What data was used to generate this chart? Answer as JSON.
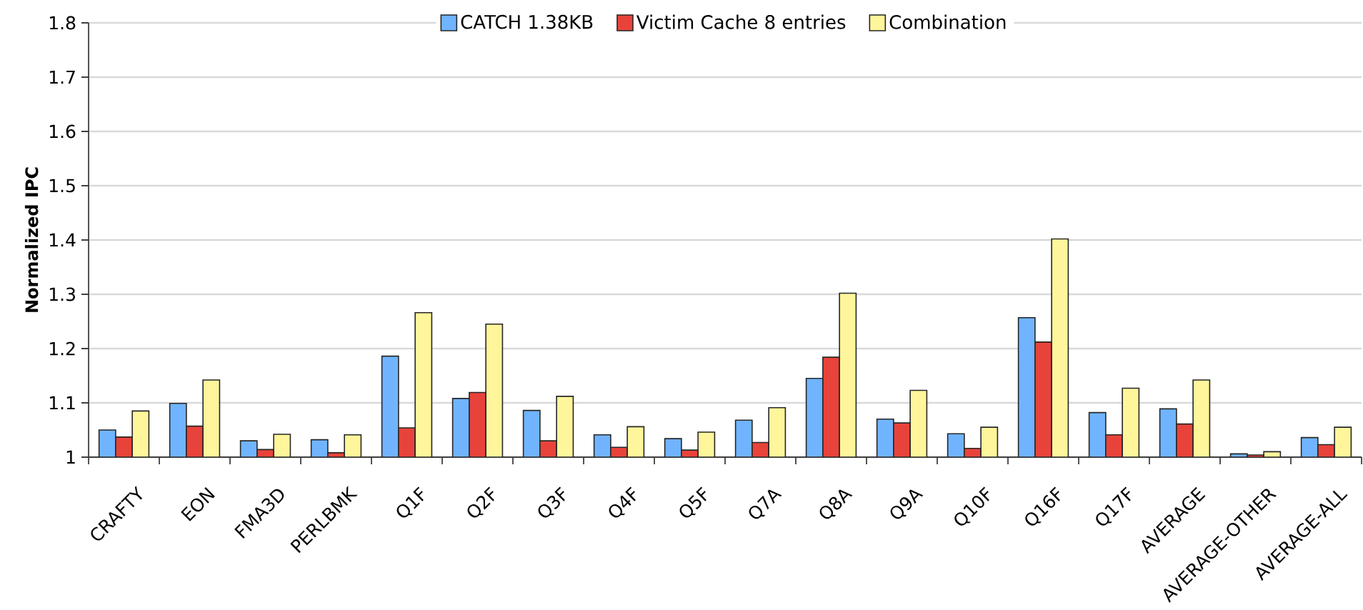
{
  "chart_data": {
    "type": "bar",
    "ylabel": "Normalized IPC",
    "categories": [
      "CRAFTY",
      "EON",
      "FMA3D",
      "PERLBMK",
      "Q1F",
      "Q2F",
      "Q3F",
      "Q4F",
      "Q5F",
      "Q7A",
      "Q8A",
      "Q9A",
      "Q10F",
      "Q16F",
      "Q17F",
      "AVERAGE",
      "AVERAGE-OTHER",
      "AVERAGE-ALL"
    ],
    "series": [
      {
        "name": "CATCH 1.38KB",
        "color": "#70b4ff",
        "values": [
          1.05,
          1.099,
          1.03,
          1.032,
          1.186,
          1.108,
          1.086,
          1.041,
          1.034,
          1.068,
          1.145,
          1.07,
          1.043,
          1.257,
          1.082,
          1.089,
          1.006,
          1.036
        ]
      },
      {
        "name": "Victim Cache 8 entries",
        "color": "#e8433a",
        "values": [
          1.037,
          1.057,
          1.014,
          1.008,
          1.054,
          1.119,
          1.03,
          1.018,
          1.013,
          1.027,
          1.184,
          1.063,
          1.016,
          1.212,
          1.041,
          1.061,
          1.004,
          1.023
        ]
      },
      {
        "name": "Combination",
        "color": "#fff59b",
        "values": [
          1.085,
          1.142,
          1.042,
          1.041,
          1.266,
          1.245,
          1.112,
          1.056,
          1.046,
          1.091,
          1.302,
          1.123,
          1.055,
          1.402,
          1.127,
          1.142,
          1.01,
          1.055
        ]
      }
    ],
    "ylim": [
      1,
      1.8
    ],
    "yticks": [
      1,
      1.1,
      1.2,
      1.3,
      1.4,
      1.5,
      1.6,
      1.7,
      1.8
    ],
    "grid": "y",
    "legend": "top"
  }
}
